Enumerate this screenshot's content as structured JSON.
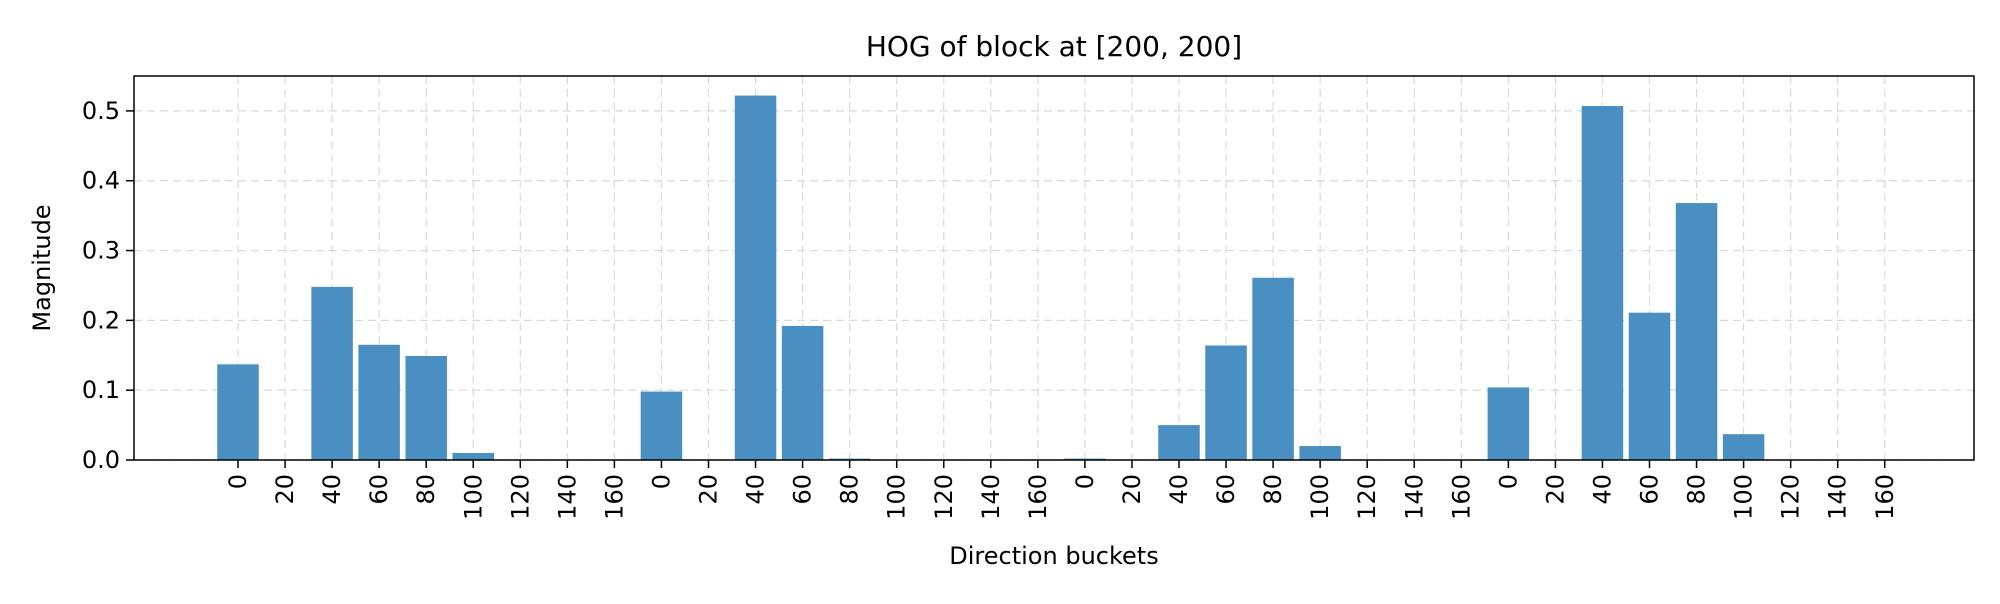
{
  "chart_data": {
    "type": "bar",
    "title": "HOG of block at [200, 200]",
    "xlabel": "Direction buckets",
    "ylabel": "Magnitude",
    "ylim": [
      0,
      0.55
    ],
    "yticks": [
      "0.0",
      "0.1",
      "0.2",
      "0.3",
      "0.4",
      "0.5"
    ],
    "grid": true,
    "categories": [
      "0",
      "20",
      "40",
      "60",
      "80",
      "100",
      "120",
      "140",
      "160",
      "0",
      "20",
      "40",
      "60",
      "80",
      "100",
      "120",
      "140",
      "160",
      "0",
      "20",
      "40",
      "60",
      "80",
      "100",
      "120",
      "140",
      "160",
      "0",
      "20",
      "40",
      "60",
      "80",
      "100",
      "120",
      "140",
      "160"
    ],
    "values": [
      0.137,
      0.0,
      0.248,
      0.165,
      0.149,
      0.01,
      0.0,
      0.0,
      0.0,
      0.098,
      0.0,
      0.522,
      0.192,
      0.002,
      0.0,
      0.0,
      0.0,
      0.0,
      0.002,
      0.0,
      0.05,
      0.164,
      0.261,
      0.02,
      0.0,
      0.0,
      0.0,
      0.104,
      0.0,
      0.507,
      0.211,
      0.368,
      0.037,
      0.0,
      0.0,
      0.0
    ],
    "bar_color": "#4a8fc2",
    "grid_color": "#d9d9d9"
  }
}
